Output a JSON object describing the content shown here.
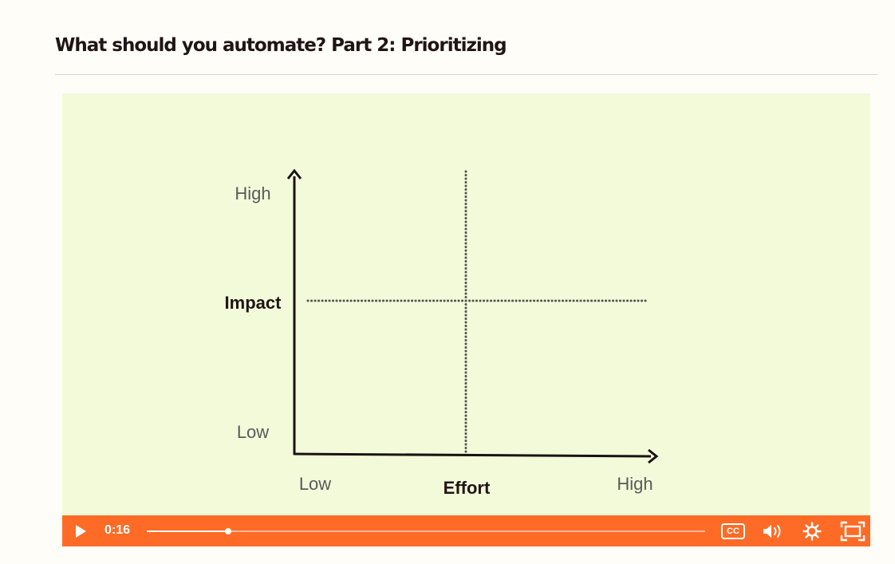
{
  "page": {
    "title": "What should you automate? Part 2: Prioritizing"
  },
  "video": {
    "chart": {
      "y_axis": {
        "title": "Impact",
        "high_label": "High",
        "low_label": "Low"
      },
      "x_axis": {
        "title": "Effort",
        "low_label": "Low",
        "high_label": "High"
      }
    },
    "controls": {
      "current_time": "0:16",
      "progress_fraction": 0.146,
      "cc_label": "CC",
      "icons": [
        "play-icon",
        "closed-captions-icon",
        "volume-icon",
        "settings-icon",
        "fullscreen-icon"
      ]
    }
  },
  "colors": {
    "background": "#fffdf8",
    "video_background": "#f2fad9",
    "control_bar": "#fe6b26",
    "title_text": "#201515"
  }
}
